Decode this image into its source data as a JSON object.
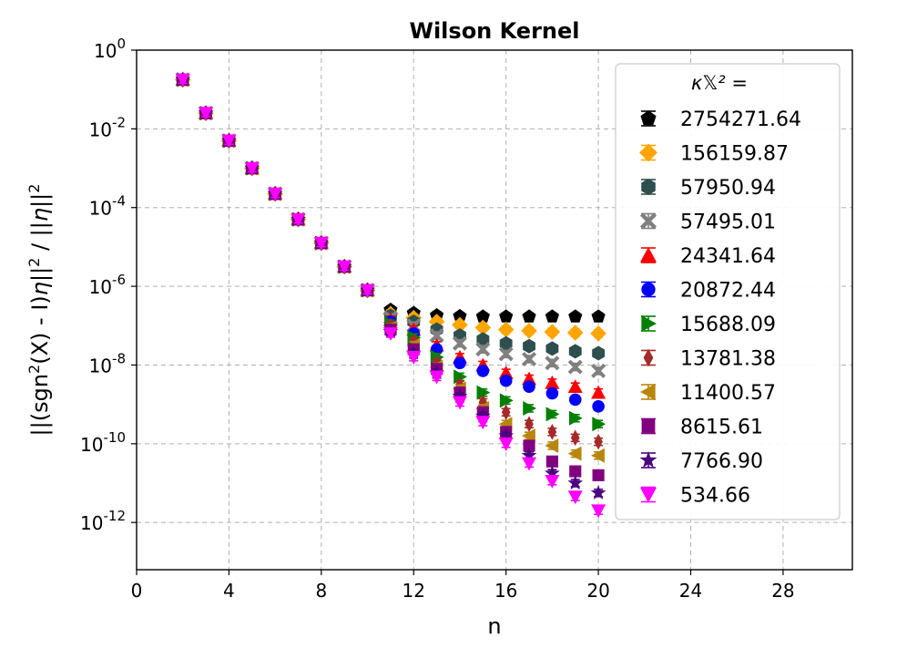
{
  "chart_data": {
    "type": "scatter",
    "title": "Wilson Kernel",
    "xlabel": "n",
    "ylabel_parts": [
      "||(sgn",
      "2",
      "(X) - I)",
      "η",
      "||",
      "2",
      " / ||",
      "η",
      "||",
      "2"
    ],
    "xlim": [
      0,
      31
    ],
    "ylog10_lim": [
      -13.2,
      0
    ],
    "xticks": [
      "0",
      "4",
      "8",
      "12",
      "16",
      "20",
      "24",
      "28"
    ],
    "xtick_values": [
      0,
      4,
      8,
      12,
      16,
      20,
      24,
      28
    ],
    "ytick_exponents": [
      "0",
      "-2",
      "-4",
      "-6",
      "-8",
      "-10",
      "-12"
    ],
    "ytick_values": [
      0,
      -2,
      -4,
      -6,
      -8,
      -10,
      -12
    ],
    "ytick_base": "10",
    "grid": true,
    "legend_position": "right",
    "legend_title": "κ𝕏² =",
    "x": [
      2,
      3,
      4,
      5,
      6,
      7,
      8,
      9,
      10,
      11,
      12,
      13,
      14,
      15,
      16,
      17,
      18,
      19,
      20
    ],
    "common_log10": [
      -0.75,
      -1.6,
      -2.3,
      -3.0,
      -3.65,
      -4.3,
      -4.9,
      -5.5,
      -6.1
    ],
    "series": [
      {
        "name": "2754271.64",
        "color": "#000000",
        "marker": "pentagon",
        "log10_values": [
          -6.6,
          -6.68,
          -6.74,
          -6.76,
          -6.77,
          -6.77,
          -6.77,
          -6.77,
          -6.77,
          -6.77
        ]
      },
      {
        "name": "156159.87",
        "color": "#ffa500",
        "marker": "diamond",
        "log10_values": [
          -6.7,
          -6.8,
          -6.9,
          -6.98,
          -7.05,
          -7.1,
          -7.13,
          -7.16,
          -7.18,
          -7.2
        ]
      },
      {
        "name": "57950.94",
        "color": "#2f4f4f",
        "marker": "hexagon",
        "log10_values": [
          -6.75,
          -6.9,
          -7.1,
          -7.25,
          -7.35,
          -7.45,
          -7.52,
          -7.58,
          -7.65,
          -7.7
        ]
      },
      {
        "name": "57495.01",
        "color": "#808080",
        "marker": "x",
        "log10_values": [
          -6.8,
          -7.0,
          -7.25,
          -7.45,
          -7.6,
          -7.72,
          -7.85,
          -7.95,
          -8.05,
          -8.15
        ]
      },
      {
        "name": "24341.64",
        "color": "#ff0000",
        "marker": "triangle-up",
        "log10_values": [
          -6.85,
          -7.1,
          -7.5,
          -7.8,
          -8.0,
          -8.2,
          -8.35,
          -8.45,
          -8.55,
          -8.7
        ]
      },
      {
        "name": "20872.44",
        "color": "#0000ff",
        "marker": "circle",
        "log10_values": [
          -6.9,
          -7.2,
          -7.6,
          -7.95,
          -8.15,
          -8.4,
          -8.55,
          -8.72,
          -8.88,
          -9.05
        ]
      },
      {
        "name": "15688.09",
        "color": "#008000",
        "marker": "triangle-right",
        "log10_values": [
          -6.95,
          -7.3,
          -7.8,
          -8.3,
          -8.7,
          -8.9,
          -9.1,
          -9.25,
          -9.35,
          -9.5
        ]
      },
      {
        "name": "13781.38",
        "color": "#a52a2a",
        "marker": "thin-diamond",
        "log10_values": [
          -7.0,
          -7.4,
          -7.95,
          -8.5,
          -8.95,
          -9.2,
          -9.5,
          -9.7,
          -9.85,
          -9.95
        ]
      },
      {
        "name": "11400.57",
        "color": "#b8860b",
        "marker": "triangle-left",
        "log10_values": [
          -7.05,
          -7.5,
          -8.05,
          -8.6,
          -9.1,
          -9.5,
          -9.8,
          -10.05,
          -10.25,
          -10.3
        ]
      },
      {
        "name": "8615.61",
        "color": "#800080",
        "marker": "square",
        "log10_values": [
          -7.1,
          -7.6,
          -8.1,
          -8.7,
          -9.2,
          -9.7,
          -10.05,
          -10.45,
          -10.7,
          -10.8
        ]
      },
      {
        "name": "7766.90",
        "color": "#4b0082",
        "marker": "star",
        "log10_values": [
          -7.15,
          -7.7,
          -8.2,
          -8.8,
          -9.3,
          -9.8,
          -10.3,
          -10.75,
          -11.0,
          -11.25
        ]
      },
      {
        "name": "534.66",
        "color": "#ff00ff",
        "marker": "triangle-down",
        "log10_values": [
          -7.2,
          -7.8,
          -8.3,
          -8.95,
          -9.45,
          -10.0,
          -10.5,
          -10.95,
          -11.35,
          -11.7
        ]
      }
    ]
  }
}
